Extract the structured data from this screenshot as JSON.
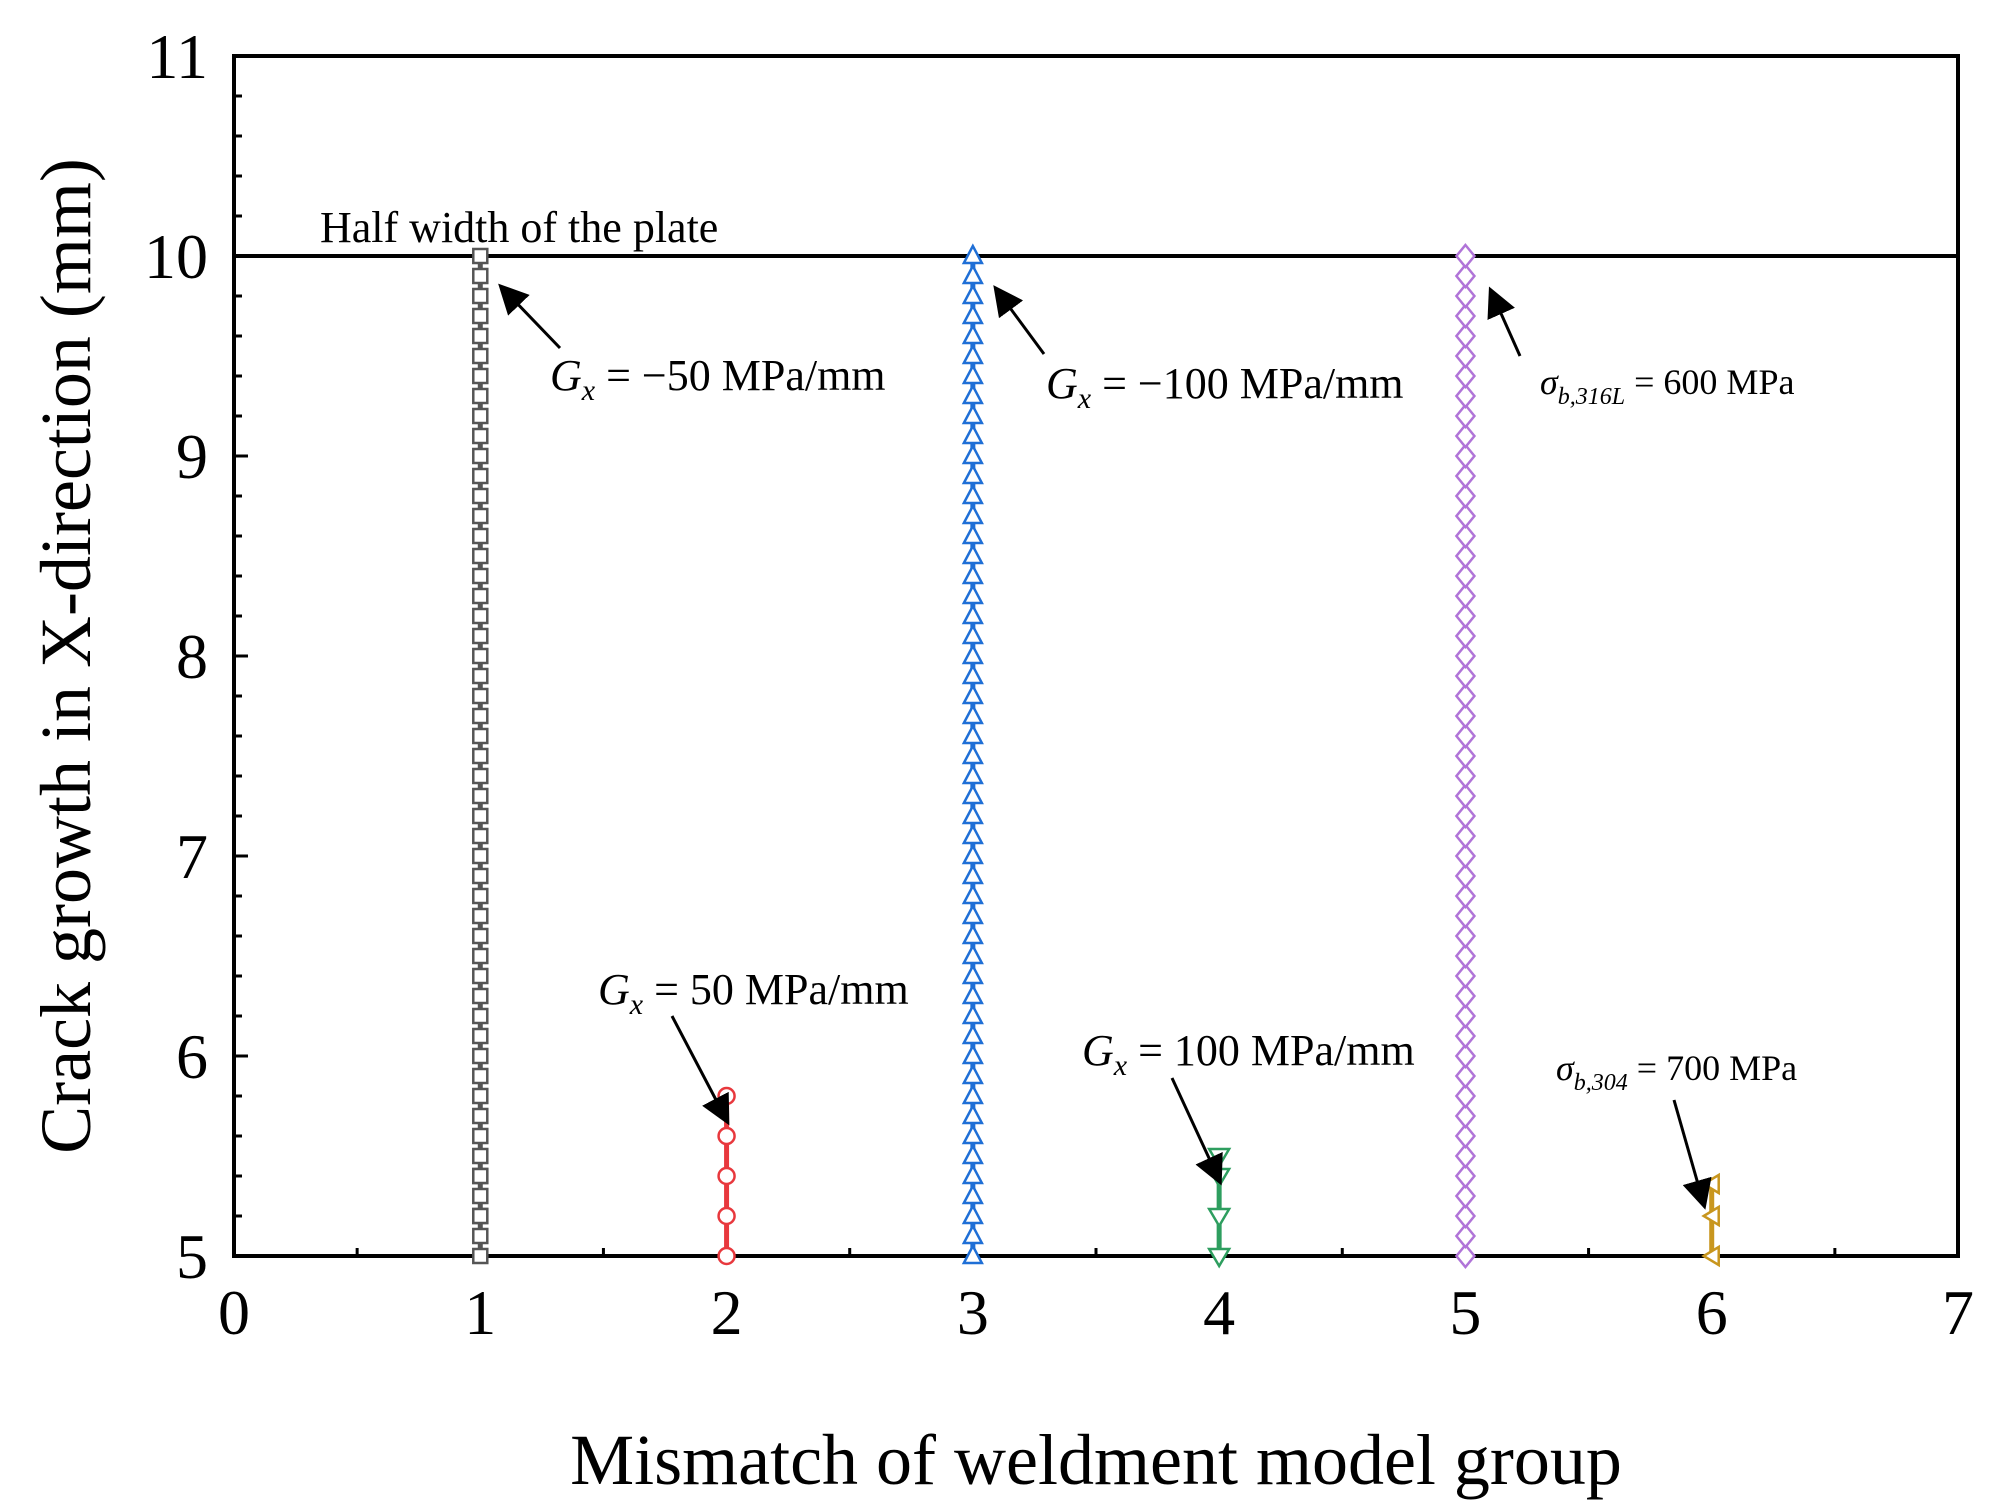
{
  "chart_data": {
    "type": "line",
    "xlabel": "Mismatch of weldment  model group",
    "ylabel": "Crack growth in X-direction (mm)",
    "xlim": [
      0,
      7
    ],
    "ylim": [
      5,
      11
    ],
    "xticks": [
      "0",
      "1",
      "2",
      "3",
      "4",
      "5",
      "6",
      "7"
    ],
    "yticks": [
      "5",
      "6",
      "7",
      "8",
      "9",
      "10",
      "11"
    ],
    "grid": false,
    "reference_line": {
      "y": 10,
      "label": "Half width of the plate"
    },
    "series": [
      {
        "x": 1,
        "marker": "square",
        "color": "#555555",
        "y_range": [
          5.0,
          10.0
        ],
        "step": 0.1,
        "extra_points": [
          5.2,
          5.4
        ]
      },
      {
        "x": 2,
        "marker": "circle",
        "color": "#e8383d",
        "values": [
          5.0,
          5.2,
          5.4,
          5.6,
          5.8
        ]
      },
      {
        "x": 3,
        "marker": "triangle-up",
        "color": "#1f6fd6",
        "y_range": [
          5.0,
          10.0
        ],
        "step": 0.1
      },
      {
        "x": 4,
        "marker": "triangle-down",
        "color": "#2e9e5f",
        "values": [
          5.0,
          5.2,
          5.4,
          5.5
        ]
      },
      {
        "x": 5,
        "marker": "diamond",
        "color": "#b074d8",
        "y_range": [
          5.0,
          10.0
        ],
        "step": 0.1
      },
      {
        "x": 6,
        "marker": "triangle-left",
        "color": "#c8961e",
        "values": [
          5.0,
          5.2,
          5.36
        ]
      }
    ],
    "annotations": [
      {
        "id": "a1",
        "sym": "G",
        "sub": "x",
        "rest": " = −50 MPa/mm",
        "target": [
          1,
          10.0
        ]
      },
      {
        "id": "a2",
        "sym": "G",
        "sub": "x",
        "rest": " = 50 MPa/mm",
        "target": [
          2,
          5.8
        ]
      },
      {
        "id": "a3",
        "sym": "G",
        "sub": "x",
        "rest": " = −100 MPa/mm",
        "target": [
          3,
          10.0
        ]
      },
      {
        "id": "a4",
        "sym": "G",
        "sub": "x",
        "rest": " = 100 MPa/mm",
        "target": [
          4,
          5.5
        ]
      },
      {
        "id": "a5",
        "sym": "σ",
        "sub": "b,316L",
        "rest": " = 600 MPa",
        "target": [
          5,
          10.0
        ]
      },
      {
        "id": "a6",
        "sym": "σ",
        "sub": "b,304",
        "rest": " = 700 MPa",
        "target": [
          6,
          5.36
        ]
      }
    ]
  }
}
